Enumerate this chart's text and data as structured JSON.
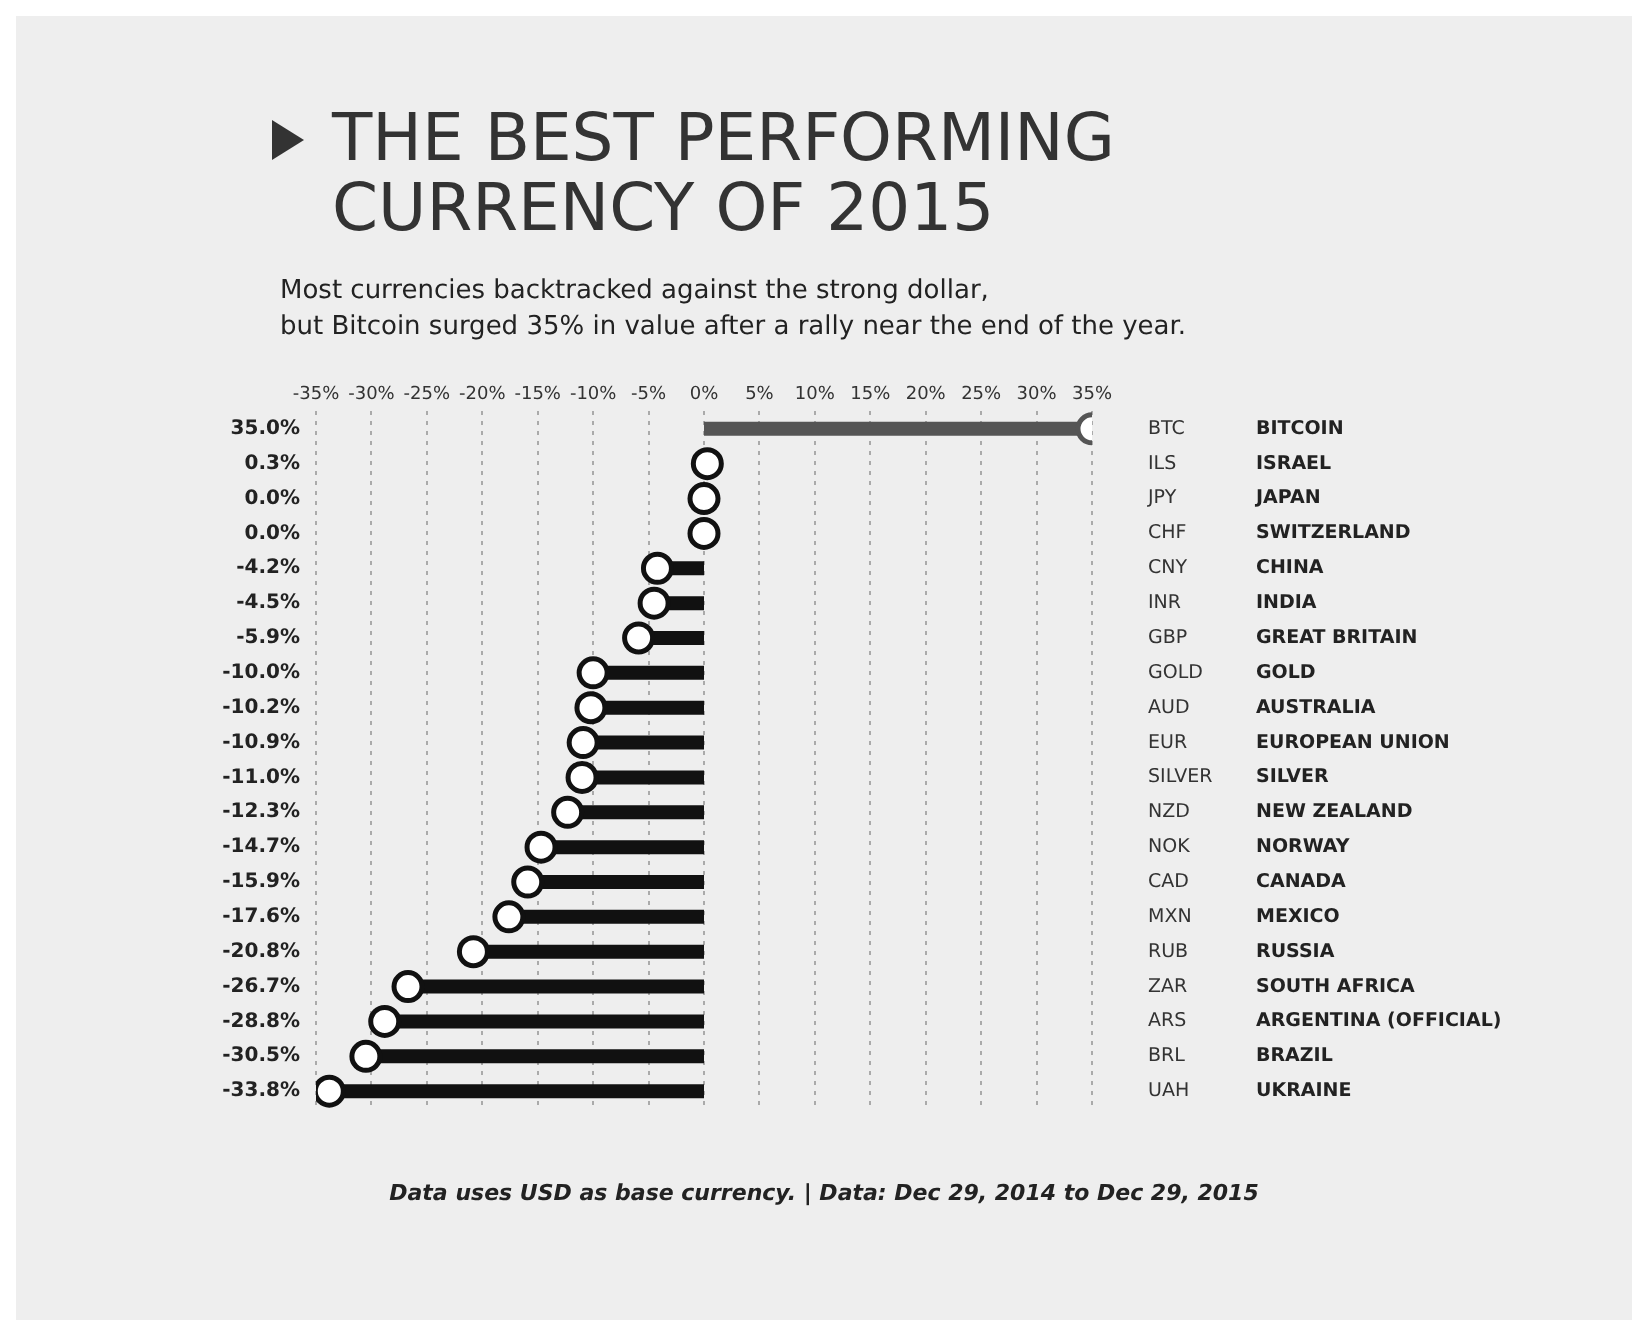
{
  "chart_data": {
    "type": "lollipop",
    "orientation": "horizontal",
    "title": "THE BEST PERFORMING CURRENCY OF 2015",
    "subtitle": "Most currencies backtracked against the strong dollar,\nbut Bitcoin surged 35% in value after a rally near the end of the year.",
    "categories": [
      "BTC",
      "ILS",
      "JPY",
      "CHF",
      "CNY",
      "INR",
      "GBP",
      "GOLD",
      "AUD",
      "EUR",
      "SILVER",
      "NZD",
      "NOK",
      "CAD",
      "MXN",
      "RUB",
      "ZAR",
      "ARS",
      "BRL",
      "UAH"
    ],
    "y2_categories": [
      "BITCOIN",
      "ISRAEL",
      "JAPAN",
      "SWITZERLAND",
      "CHINA",
      "INDIA",
      "GREAT BRITAIN",
      "GOLD",
      "AUSTRALIA",
      "EUROPEAN UNION",
      "SILVER",
      "NEW ZEALAND",
      "NORWAY",
      "CANADA",
      "MEXICO",
      "RUSSIA",
      "SOUTH AFRICA",
      "ARGENTINA (OFFICIAL)",
      "BRAZIL",
      "UKRAINE"
    ],
    "values": [
      35.0,
      0.3,
      0.0,
      0.0,
      -4.2,
      -4.5,
      -5.9,
      -10.0,
      -10.2,
      -10.9,
      -11.0,
      -12.3,
      -14.7,
      -15.9,
      -17.6,
      -20.8,
      -26.7,
      -28.8,
      -30.5,
      -33.8
    ],
    "value_labels": [
      "35.0%",
      "0.3%",
      "0.0%",
      "0.0%",
      "-4.2%",
      "-4.5%",
      "-5.9%",
      "-10.0%",
      "-10.2%",
      "-10.9%",
      "-11.0%",
      "-12.3%",
      "-14.7%",
      "-15.9%",
      "-17.6%",
      "-20.8%",
      "-26.7%",
      "-28.8%",
      "-30.5%",
      "-33.8%"
    ],
    "colors": [
      "#555555",
      "#111111",
      "#111111",
      "#111111",
      "#111111",
      "#111111",
      "#111111",
      "#111111",
      "#111111",
      "#111111",
      "#111111",
      "#111111",
      "#111111",
      "#111111",
      "#111111",
      "#111111",
      "#111111",
      "#111111",
      "#111111",
      "#111111"
    ],
    "xlim": [
      -35,
      35
    ],
    "xticks": [
      {
        "value": -35,
        "label": "-35%"
      },
      {
        "value": -30,
        "label": "-30%"
      },
      {
        "value": -25,
        "label": "-25%"
      },
      {
        "value": -20,
        "label": "-20%"
      },
      {
        "value": -15,
        "label": "-15%"
      },
      {
        "value": -10,
        "label": "-10%"
      },
      {
        "value": -5,
        "label": "-5%"
      },
      {
        "value": 0,
        "label": "0%"
      },
      {
        "value": 5,
        "label": "5%"
      },
      {
        "value": 10,
        "label": "10%"
      },
      {
        "value": 15,
        "label": "15%"
      },
      {
        "value": 20,
        "label": "20%"
      },
      {
        "value": 25,
        "label": "25%"
      },
      {
        "value": 30,
        "label": "30%"
      },
      {
        "value": 35,
        "label": "35%"
      }
    ],
    "grid": "x",
    "marker": "circle",
    "legend": false,
    "annotations": [
      "Data uses USD as base currency. | Data: Dec 29, 2014 to Dec 29, 2015"
    ]
  }
}
